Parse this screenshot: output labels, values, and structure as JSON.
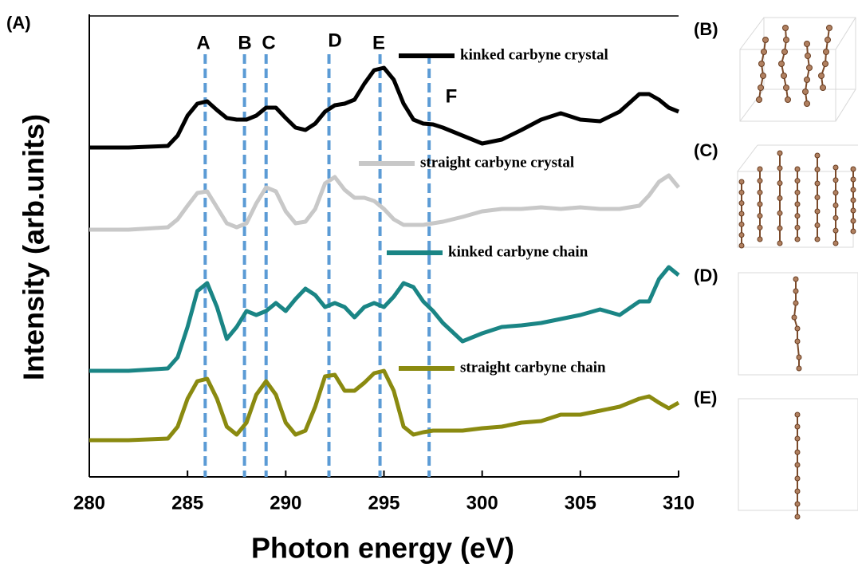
{
  "chart_data": {
    "type": "line",
    "panel_label": "(A)",
    "xlabel": "Photon energy (eV)",
    "ylabel": "Intensity (arb.units)",
    "x": [
      280,
      282,
      284,
      284.5,
      285,
      285.5,
      286,
      286.5,
      287,
      287.5,
      288,
      288.5,
      289,
      289.5,
      290,
      290.5,
      291,
      291.5,
      292,
      292.5,
      293,
      293.5,
      294,
      294.5,
      295,
      295.5,
      296,
      296.5,
      297,
      297.5,
      298,
      299,
      300,
      301,
      302,
      303,
      304,
      305,
      306,
      307,
      308,
      308.5,
      309,
      309.5,
      310
    ],
    "xlim": [
      280,
      310
    ],
    "xticks": [
      280,
      285,
      290,
      295,
      300,
      305,
      310
    ],
    "ylim": [
      0,
      580
    ],
    "series": [
      {
        "name": "kinked carbyne crystal",
        "color": "#000000",
        "values": [
          413,
          413,
          415,
          428,
          453,
          468,
          471,
          460,
          450,
          448,
          448,
          453,
          463,
          463,
          450,
          438,
          435,
          443,
          458,
          466,
          468,
          473,
          493,
          510,
          513,
          498,
          468,
          448,
          443,
          442,
          438,
          428,
          418,
          423,
          435,
          448,
          456,
          448,
          446,
          458,
          480,
          480,
          473,
          463,
          458
        ]
      },
      {
        "name": "straight carbyne crystal",
        "color": "#c8c8c8",
        "values": [
          310,
          310,
          313,
          323,
          340,
          356,
          358,
          338,
          318,
          313,
          318,
          343,
          363,
          358,
          333,
          318,
          320,
          336,
          368,
          376,
          360,
          350,
          350,
          346,
          336,
          323,
          316,
          316,
          316,
          318,
          320,
          326,
          333,
          336,
          336,
          338,
          336,
          338,
          336,
          336,
          340,
          353,
          370,
          378,
          363
        ]
      },
      {
        "name": "kinked carbyne chain",
        "color": "#1a8585",
        "values": [
          133,
          133,
          136,
          150,
          188,
          233,
          243,
          213,
          173,
          188,
          208,
          203,
          208,
          218,
          208,
          223,
          236,
          228,
          213,
          218,
          213,
          200,
          213,
          218,
          213,
          226,
          243,
          238,
          220,
          208,
          193,
          170,
          180,
          188,
          190,
          193,
          198,
          203,
          210,
          203,
          220,
          220,
          248,
          263,
          253
        ]
      },
      {
        "name": "straight carbyne chain",
        "color": "#8a8a10",
        "values": [
          46,
          46,
          48,
          63,
          98,
          120,
          123,
          98,
          63,
          53,
          68,
          103,
          120,
          103,
          68,
          53,
          58,
          88,
          126,
          128,
          108,
          108,
          118,
          130,
          133,
          108,
          63,
          53,
          56,
          58,
          58,
          58,
          61,
          63,
          68,
          70,
          78,
          78,
          83,
          88,
          98,
          101,
          93,
          86,
          93
        ]
      }
    ],
    "annotations": [
      {
        "label": "A",
        "x": 285.9
      },
      {
        "label": "B",
        "x": 287.9
      },
      {
        "label": "C",
        "x": 289.0
      },
      {
        "label": "D",
        "x": 292.2
      },
      {
        "label": "E",
        "x": 294.8
      },
      {
        "label": "F",
        "x": 297.3
      }
    ],
    "annotation_color": "#5b9bd5"
  },
  "structure_panels": [
    "(B)",
    "(C)",
    "(D)",
    "(E)"
  ]
}
